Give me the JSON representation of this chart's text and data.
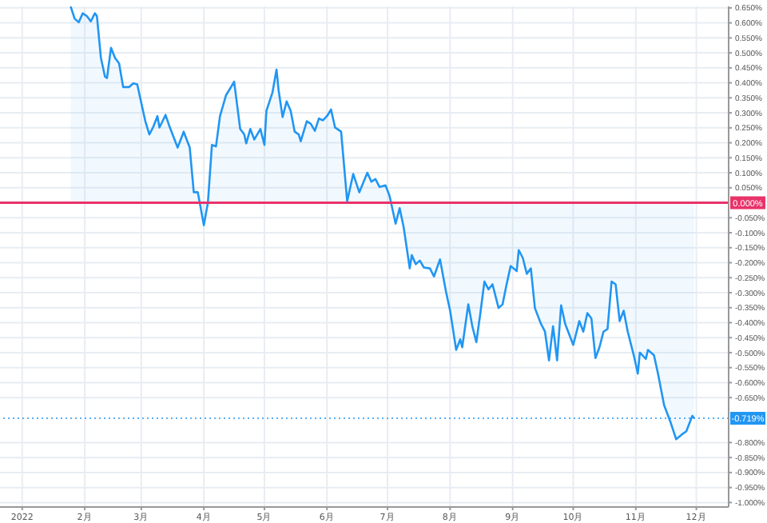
{
  "chart_data": {
    "type": "area",
    "x": [
      "2022-01-25",
      "2022-01-27",
      "2022-01-29",
      "2022-01-31",
      "2022-02-02",
      "2022-02-04",
      "2022-02-06",
      "2022-02-07",
      "2022-02-09",
      "2022-02-11",
      "2022-02-12",
      "2022-02-14",
      "2022-02-16",
      "2022-02-18",
      "2022-02-20",
      "2022-02-23",
      "2022-02-25",
      "2022-02-27",
      "2022-03-01",
      "2022-03-03",
      "2022-03-05",
      "2022-03-07",
      "2022-03-09",
      "2022-03-10",
      "2022-03-13",
      "2022-03-15",
      "2022-03-19",
      "2022-03-21",
      "2022-03-22",
      "2022-03-25",
      "2022-03-27",
      "2022-03-29",
      "2022-04-01",
      "2022-04-03",
      "2022-04-05",
      "2022-04-07",
      "2022-04-09",
      "2022-04-12",
      "2022-04-14",
      "2022-04-16",
      "2022-04-19",
      "2022-04-21",
      "2022-04-22",
      "2022-04-24",
      "2022-04-26",
      "2022-04-29",
      "2022-05-01",
      "2022-05-02",
      "2022-05-05",
      "2022-05-07",
      "2022-05-08",
      "2022-05-10",
      "2022-05-12",
      "2022-05-14",
      "2022-05-16",
      "2022-05-18",
      "2022-05-19",
      "2022-05-22",
      "2022-05-24",
      "2022-05-26",
      "2022-05-28",
      "2022-05-30",
      "2022-06-01",
      "2022-06-03",
      "2022-06-05",
      "2022-06-08",
      "2022-06-11",
      "2022-06-14",
      "2022-06-17",
      "2022-06-21",
      "2022-06-23",
      "2022-06-25",
      "2022-06-27",
      "2022-06-30",
      "2022-07-02",
      "2022-07-05",
      "2022-07-07",
      "2022-07-09",
      "2022-07-12",
      "2022-07-13",
      "2022-07-15",
      "2022-07-17",
      "2022-07-19",
      "2022-07-22",
      "2022-07-24",
      "2022-07-27",
      "2022-07-30",
      "2022-08-01",
      "2022-08-04",
      "2022-08-06",
      "2022-08-07",
      "2022-08-10",
      "2022-08-12",
      "2022-08-14",
      "2022-08-16",
      "2022-08-18",
      "2022-08-20",
      "2022-08-22",
      "2022-08-25",
      "2022-08-27",
      "2022-08-29",
      "2022-08-31",
      "2022-09-03",
      "2022-09-04",
      "2022-09-06",
      "2022-09-08",
      "2022-09-10",
      "2022-09-12",
      "2022-09-15",
      "2022-09-17",
      "2022-09-19",
      "2022-09-21",
      "2022-09-23",
      "2022-09-25",
      "2022-09-27",
      "2022-10-01",
      "2022-10-04",
      "2022-10-06",
      "2022-10-08",
      "2022-10-10",
      "2022-10-12",
      "2022-10-14",
      "2022-10-16",
      "2022-10-18",
      "2022-10-20",
      "2022-10-22",
      "2022-10-24",
      "2022-10-26",
      "2022-10-28",
      "2022-10-31",
      "2022-11-02",
      "2022-11-03",
      "2022-11-06",
      "2022-11-07",
      "2022-11-10",
      "2022-11-12",
      "2022-11-15",
      "2022-11-18",
      "2022-11-21",
      "2022-11-24",
      "2022-11-26",
      "2022-11-29",
      "2022-11-30"
    ],
    "series": [
      {
        "color": "#2196f3",
        "values": [
          0.655,
          0.614,
          0.602,
          0.632,
          0.623,
          0.605,
          0.632,
          0.623,
          0.483,
          0.421,
          0.416,
          0.517,
          0.483,
          0.465,
          0.386,
          0.386,
          0.398,
          0.395,
          0.333,
          0.272,
          0.228,
          0.254,
          0.289,
          0.251,
          0.293,
          0.254,
          0.184,
          0.219,
          0.237,
          0.184,
          0.035,
          0.035,
          -0.075,
          0,
          0.193,
          0.188,
          0.289,
          0.359,
          0.381,
          0.404,
          0.246,
          0.228,
          0.198,
          0.246,
          0.211,
          0.246,
          0.193,
          0.307,
          0.368,
          0.444,
          0.377,
          0.286,
          0.338,
          0.307,
          0.237,
          0.228,
          0.205,
          0.272,
          0.263,
          0.24,
          0.281,
          0.275,
          0.289,
          0.311,
          0.251,
          0.237,
          0.005,
          0.096,
          0.035,
          0.1,
          0.07,
          0.079,
          0.053,
          0.058,
          0.023,
          -0.07,
          -0.018,
          -0.082,
          -0.219,
          -0.175,
          -0.205,
          -0.193,
          -0.216,
          -0.219,
          -0.246,
          -0.189,
          -0.298,
          -0.36,
          -0.491,
          -0.456,
          -0.482,
          -0.339,
          -0.412,
          -0.465,
          -0.368,
          -0.263,
          -0.289,
          -0.272,
          -0.351,
          -0.339,
          -0.272,
          -0.211,
          -0.228,
          -0.158,
          -0.184,
          -0.237,
          -0.219,
          -0.351,
          -0.404,
          -0.43,
          -0.526,
          -0.412,
          -0.526,
          -0.342,
          -0.404,
          -0.474,
          -0.395,
          -0.43,
          -0.368,
          -0.386,
          -0.518,
          -0.482,
          -0.43,
          -0.421,
          -0.263,
          -0.272,
          -0.395,
          -0.36,
          -0.43,
          -0.509,
          -0.57,
          -0.5,
          -0.521,
          -0.491,
          -0.509,
          -0.57,
          -0.675,
          -0.728,
          -0.789,
          -0.772,
          -0.763,
          -0.711,
          -0.719
        ]
      }
    ],
    "xlim": [
      "2021-12-21",
      "2022-12-17"
    ],
    "xticks": [
      {
        "value": "2022-01-01",
        "label": "2022"
      },
      {
        "value": "2022-02-01",
        "label": "2月"
      },
      {
        "value": "2022-03-01",
        "label": "3月"
      },
      {
        "value": "2022-04-01",
        "label": "4月"
      },
      {
        "value": "2022-05-01",
        "label": "5月"
      },
      {
        "value": "2022-06-01",
        "label": "6月"
      },
      {
        "value": "2022-07-01",
        "label": "7月"
      },
      {
        "value": "2022-08-01",
        "label": "8月"
      },
      {
        "value": "2022-09-01",
        "label": "9月"
      },
      {
        "value": "2022-10-01",
        "label": "10月"
      },
      {
        "value": "2022-11-01",
        "label": "11月"
      },
      {
        "value": "2022-12-01",
        "label": "12月"
      }
    ],
    "ylim": [
      -1.015,
      0.655
    ],
    "yticks": [
      {
        "value": 0.65,
        "label": "0.650%"
      },
      {
        "value": 0.6,
        "label": "0.600%"
      },
      {
        "value": 0.55,
        "label": "0.550%"
      },
      {
        "value": 0.5,
        "label": "0.500%"
      },
      {
        "value": 0.45,
        "label": "0.450%"
      },
      {
        "value": 0.4,
        "label": "0.400%"
      },
      {
        "value": 0.35,
        "label": "0.350%"
      },
      {
        "value": 0.3,
        "label": "0.300%"
      },
      {
        "value": 0.25,
        "label": "0.250%"
      },
      {
        "value": 0.2,
        "label": "0.200%"
      },
      {
        "value": 0.15,
        "label": "0.150%"
      },
      {
        "value": 0.1,
        "label": "0.100%"
      },
      {
        "value": 0.05,
        "label": "0.050%"
      },
      {
        "value": -0.05,
        "label": "-0.050%"
      },
      {
        "value": -0.1,
        "label": "-0.100%"
      },
      {
        "value": -0.15,
        "label": "-0.150%"
      },
      {
        "value": -0.2,
        "label": "-0.200%"
      },
      {
        "value": -0.25,
        "label": "-0.250%"
      },
      {
        "value": -0.3,
        "label": "-0.300%"
      },
      {
        "value": -0.35,
        "label": "-0.350%"
      },
      {
        "value": -0.4,
        "label": "-0.400%"
      },
      {
        "value": -0.45,
        "label": "-0.450%"
      },
      {
        "value": -0.5,
        "label": "-0.500%"
      },
      {
        "value": -0.55,
        "label": "-0.550%"
      },
      {
        "value": -0.6,
        "label": "-0.600%"
      },
      {
        "value": -0.65,
        "label": "-0.650%"
      },
      {
        "value": -0.8,
        "label": "-0.800%"
      },
      {
        "value": -0.85,
        "label": "-0.850%"
      },
      {
        "value": -0.9,
        "label": "-0.900%"
      },
      {
        "value": -0.95,
        "label": "-0.950%"
      },
      {
        "value": -1,
        "label": "-1.000%"
      }
    ],
    "ref_lines": [
      {
        "axis": "y",
        "value": 0,
        "label": "0.000%",
        "color": "#e8336a"
      },
      {
        "axis": "y",
        "value": -0.719,
        "label": "-0.719%",
        "color": "#2196f3",
        "line_style": "dotted"
      }
    ],
    "grid": true
  }
}
